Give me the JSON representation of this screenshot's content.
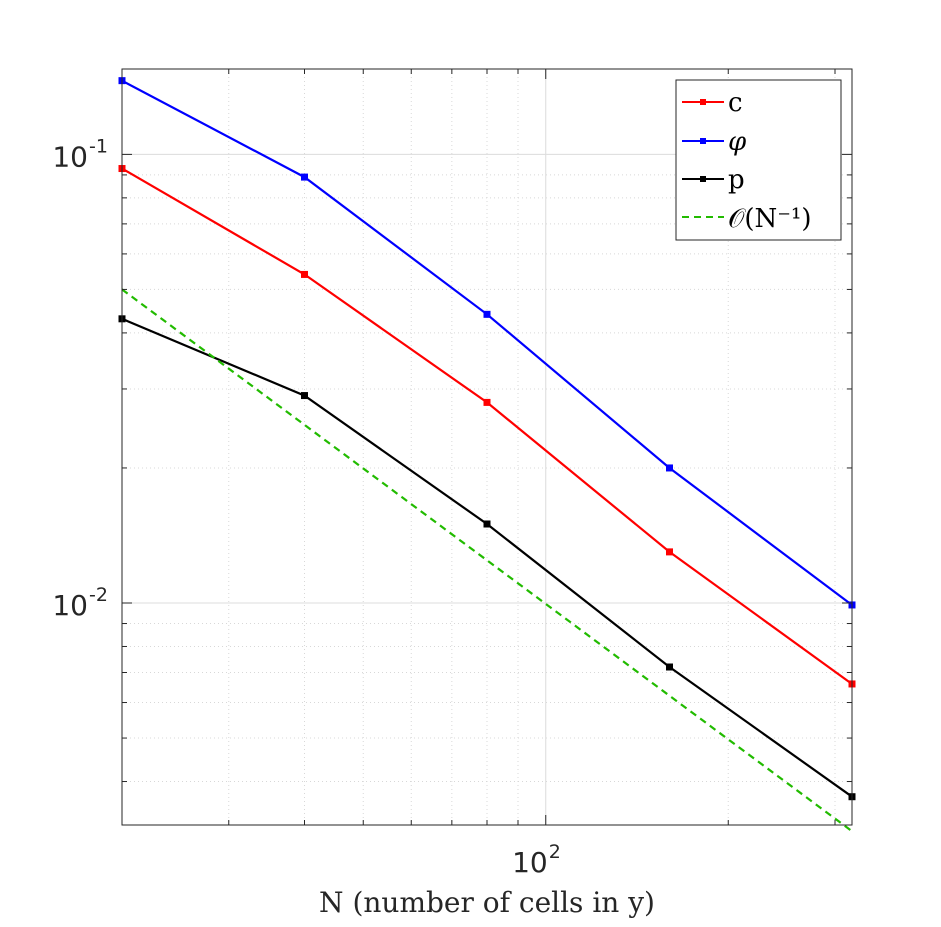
{
  "chart_data": {
    "type": "line",
    "xscale": "log",
    "yscale": "log",
    "xlabel": "N (number of cells in y)",
    "ylabel": "",
    "title": "",
    "xlim": [
      20,
      320
    ],
    "ylim": [
      0.0032,
      0.155
    ],
    "x": [
      20,
      40,
      80,
      160,
      320
    ],
    "x_tick_labels": [
      {
        "value": 100,
        "base": "10",
        "exp": "2"
      }
    ],
    "y_tick_labels": [
      {
        "value": 0.1,
        "base": "10",
        "exp": "-1"
      },
      {
        "value": 0.01,
        "base": "10",
        "exp": "-2"
      }
    ],
    "grid": true,
    "legend_position": "top-right",
    "series": [
      {
        "name": "c",
        "color": "#ff0000",
        "style": "solid",
        "marker": "square",
        "values": [
          0.093,
          0.054,
          0.028,
          0.013,
          0.0066
        ]
      },
      {
        "name": "φ",
        "color": "#0000ff",
        "style": "solid",
        "marker": "square",
        "values": [
          0.146,
          0.089,
          0.044,
          0.02,
          0.0099
        ]
      },
      {
        "name": "p",
        "color": "#000000",
        "style": "solid",
        "marker": "square",
        "values": [
          0.043,
          0.029,
          0.015,
          0.0072,
          0.0037
        ]
      },
      {
        "name": "𝒪(N⁻¹)",
        "color": "#22bb00",
        "style": "dashed",
        "marker": "none",
        "x": [
          20,
          320
        ],
        "values": [
          0.05,
          0.0031
        ]
      }
    ]
  }
}
